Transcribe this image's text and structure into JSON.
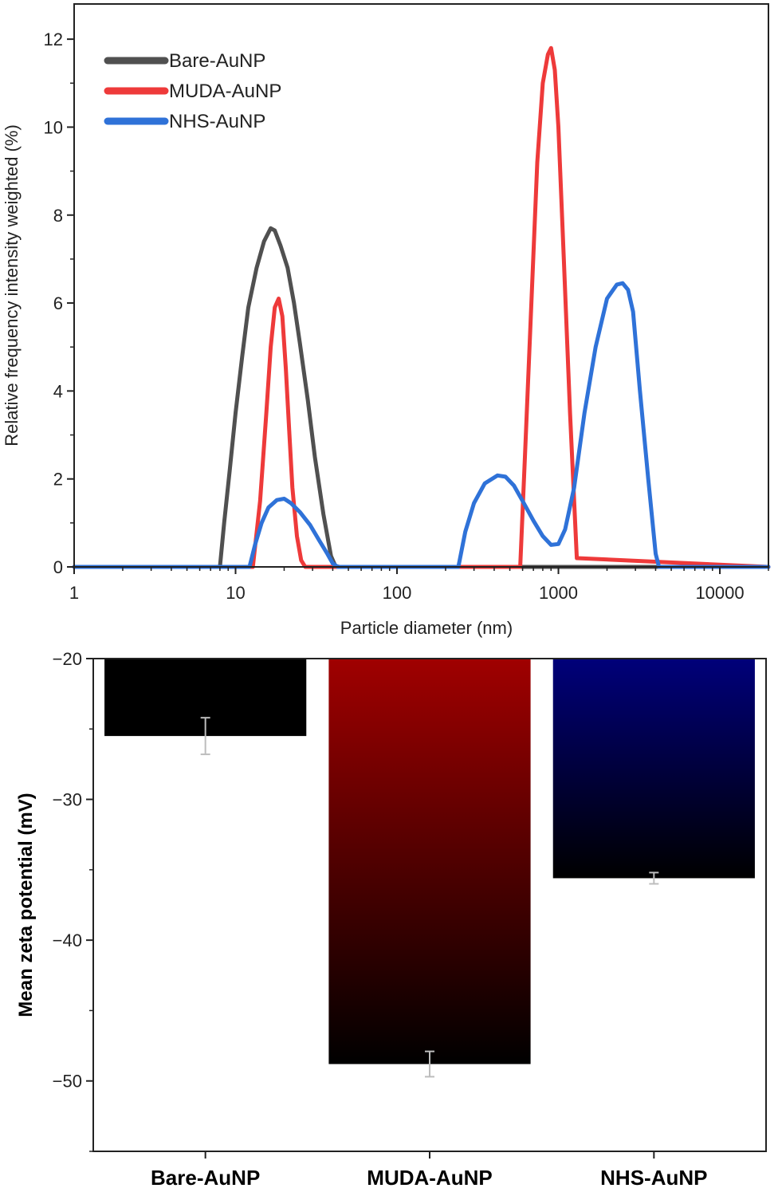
{
  "chart_data": [
    {
      "type": "line",
      "title": "",
      "xlabel": "Particle diameter (nm)",
      "ylabel": "Relative frequency intensity weighted (%)",
      "xscale": "log",
      "xlim": [
        1,
        20000
      ],
      "ylim": [
        0,
        12.8
      ],
      "xticks": [
        1,
        10,
        100,
        1000,
        10000
      ],
      "xtick_labels": [
        "1",
        "10",
        "100",
        "1000",
        "10000"
      ],
      "yticks": [
        0,
        2,
        4,
        6,
        8,
        10,
        12
      ],
      "ytick_labels": [
        "0",
        "2",
        "4",
        "6",
        "8",
        "10",
        "12"
      ],
      "grid": false,
      "legend_position": "top-left",
      "series": [
        {
          "name": "Bare-AuNP",
          "color": "#505050",
          "x": [
            1,
            8,
            8.5,
            9.2,
            10,
            11,
            12,
            13.5,
            15,
            16.5,
            17.5,
            19,
            21,
            23,
            25,
            28,
            31,
            35,
            39,
            41.5,
            44,
            50,
            100,
            1000,
            20000
          ],
          "y": [
            0,
            0,
            1.0,
            2.2,
            3.5,
            4.8,
            5.9,
            6.8,
            7.4,
            7.7,
            7.65,
            7.3,
            6.8,
            6.0,
            5.1,
            3.8,
            2.5,
            1.2,
            0.25,
            0.02,
            0,
            0,
            0,
            0,
            0
          ]
        },
        {
          "name": "MUDA-AuNP",
          "color": "#ee3a3a",
          "x": [
            1,
            12.8,
            14.2,
            15.5,
            16.5,
            17.5,
            18.5,
            19.5,
            20.5,
            21.5,
            22.5,
            24,
            25.5,
            27,
            100,
            580,
            620,
            680,
            740,
            800,
            860,
            900,
            950,
            1000,
            1080,
            1180,
            1300,
            20000
          ],
          "y": [
            0,
            0,
            1.5,
            3.5,
            5.0,
            5.9,
            6.1,
            5.7,
            4.5,
            3.1,
            1.8,
            0.7,
            0.15,
            0,
            0,
            0,
            2.5,
            6.0,
            9.2,
            11.0,
            11.65,
            11.8,
            11.3,
            10.0,
            7.0,
            3.5,
            0.2,
            0
          ]
        },
        {
          "name": "NHS-AuNP",
          "color": "#2f72d8",
          "x": [
            1,
            12.2,
            13.2,
            14.5,
            16,
            18,
            20,
            22,
            25,
            29,
            33,
            37,
            40,
            43,
            100,
            240,
            265,
            300,
            350,
            420,
            470,
            530,
            600,
            700,
            800,
            900,
            1000,
            1100,
            1250,
            1450,
            1700,
            2000,
            2300,
            2500,
            2700,
            2900,
            3200,
            3600,
            4000,
            4200,
            20000
          ],
          "y": [
            0,
            0,
            0.5,
            1.0,
            1.35,
            1.52,
            1.55,
            1.45,
            1.25,
            0.95,
            0.6,
            0.3,
            0.08,
            0,
            0,
            0,
            0.8,
            1.45,
            1.9,
            2.08,
            2.05,
            1.85,
            1.5,
            1.05,
            0.7,
            0.5,
            0.52,
            0.85,
            1.8,
            3.5,
            5.0,
            6.1,
            6.42,
            6.45,
            6.3,
            5.8,
            4.0,
            2.0,
            0.3,
            0,
            0
          ]
        }
      ]
    },
    {
      "type": "bar",
      "title": "",
      "xlabel": "",
      "ylabel": "Mean zeta potential (mV)",
      "categories": [
        "Bare-AuNP",
        "MUDA-AuNP",
        "NHS-AuNP"
      ],
      "values": [
        -25.5,
        -48.8,
        -35.6
      ],
      "error": [
        1.3,
        0.9,
        0.4
      ],
      "colors": [
        "#000000",
        "#a00000",
        "#00007a"
      ],
      "ylim": [
        -55,
        -20
      ],
      "yticks": [
        -20,
        -30,
        -40,
        -50
      ],
      "ytick_labels": [
        "−20",
        "−30",
        "−40",
        "−50"
      ],
      "grid": false
    }
  ]
}
